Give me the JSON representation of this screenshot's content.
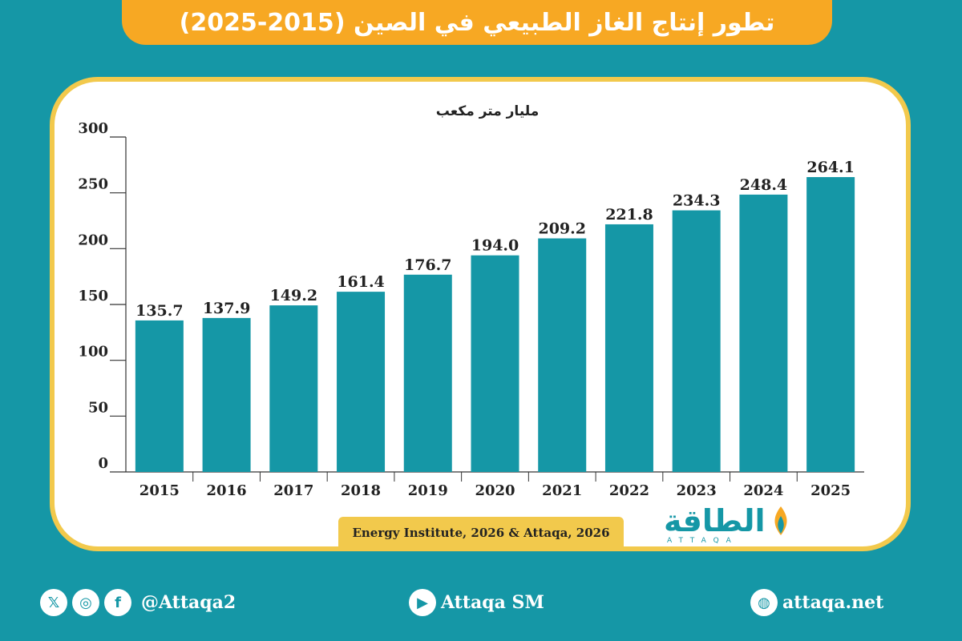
{
  "header": {
    "title": "تطور إنتاج الغاز الطبيعي في الصين (2015-2025)"
  },
  "chart_data": {
    "type": "bar",
    "title": "تطور إنتاج الغاز الطبيعي في الصين (2015-2025)",
    "ylabel": "مليار متر مكعب",
    "xlabel": "",
    "categories": [
      "2015",
      "2016",
      "2017",
      "2018",
      "2019",
      "2020",
      "2021",
      "2022",
      "2023",
      "2024",
      "2025"
    ],
    "values": [
      135.7,
      137.9,
      149.2,
      161.4,
      176.7,
      194.0,
      209.2,
      221.8,
      234.3,
      248.4,
      264.1
    ],
    "value_labels": [
      "135.7",
      "137.9",
      "149.2",
      "161.4",
      "176.7",
      "194.0",
      "209.2",
      "221.8",
      "234.3",
      "248.4",
      "264.1"
    ],
    "yticks": [
      "0",
      "50",
      "100",
      "150",
      "200",
      "250",
      "300"
    ],
    "ylim": [
      0,
      300
    ],
    "bar_color": "#1597a6",
    "grid": false
  },
  "source": "Energy Institute, 2026 & Attaqa, 2026",
  "logo": {
    "word": "الطاقة",
    "sub": "ATTAQA"
  },
  "footer": {
    "social_handle": "@Attaqa2",
    "youtube": "Attaqa SM",
    "website": "attaqa.net"
  },
  "colors": {
    "background": "#1597a6",
    "accent": "#f7a823",
    "border": "#f2c94c",
    "bar": "#1597a6"
  }
}
